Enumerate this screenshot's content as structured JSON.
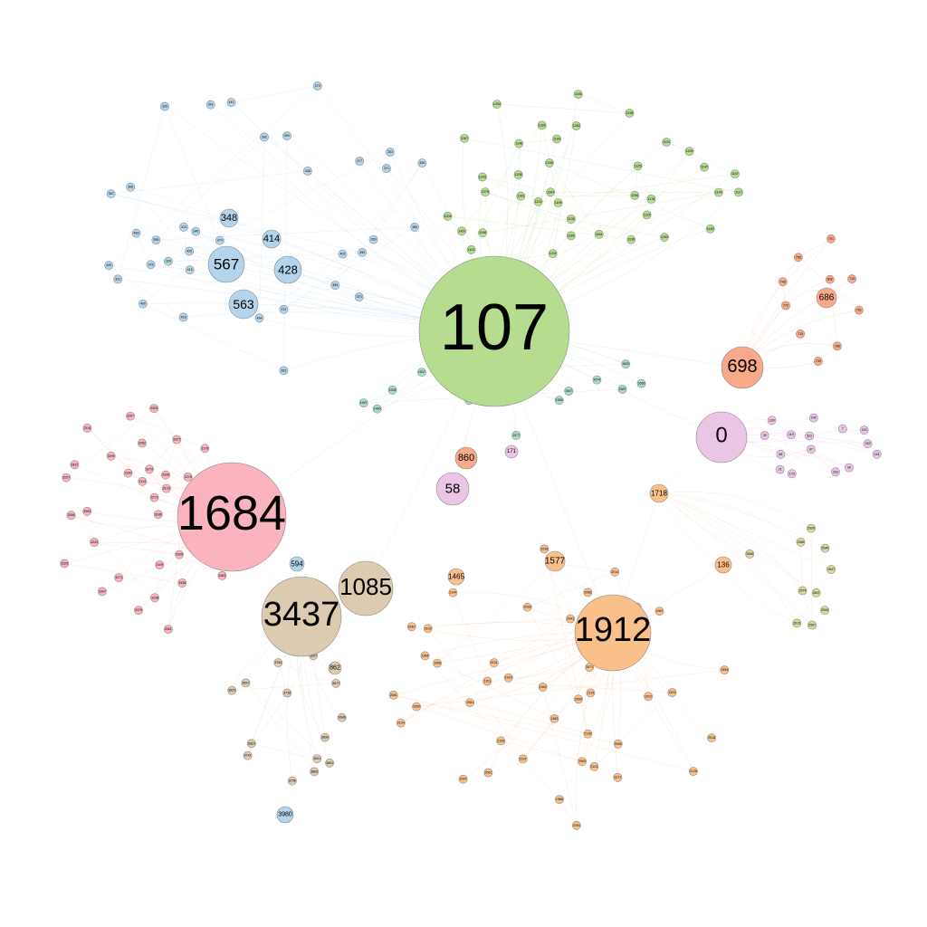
{
  "graph": {
    "palette": {
      "blue": "#b3d4ea",
      "green": "#b5dc8f",
      "teal": "#a9dcc8",
      "pink": "#fbb4bd",
      "orange": "#f9c08a",
      "tan": "#dccbb0",
      "olive": "#dcd8a0",
      "salmon": "#f7a98a",
      "violet": "#eac5e6"
    },
    "hubs": [
      {
        "id": "107",
        "community": "green"
      },
      {
        "id": "1684",
        "community": "pink"
      },
      {
        "id": "1912",
        "community": "orange"
      },
      {
        "id": "3437",
        "community": "tan"
      },
      {
        "id": "1085",
        "community": "tan"
      },
      {
        "id": "0",
        "community": "violet"
      },
      {
        "id": "698",
        "community": "salmon"
      },
      {
        "id": "567",
        "community": "blue"
      },
      {
        "id": "428",
        "community": "blue"
      },
      {
        "id": "563",
        "community": "blue"
      },
      {
        "id": "414",
        "community": "blue"
      },
      {
        "id": "348",
        "community": "blue"
      },
      {
        "id": "58",
        "community": "violet"
      },
      {
        "id": "860",
        "community": "salmon"
      },
      {
        "id": "1577",
        "community": "orange"
      },
      {
        "id": "1465",
        "community": "orange"
      },
      {
        "id": "1718",
        "community": "orange"
      },
      {
        "id": "136",
        "community": "orange"
      },
      {
        "id": "686",
        "community": "salmon"
      },
      {
        "id": "594",
        "community": "blue"
      },
      {
        "id": "862",
        "community": "tan"
      },
      {
        "id": "3980",
        "community": "blue"
      },
      {
        "id": "171",
        "community": "violet"
      }
    ],
    "communities": [
      {
        "color": "blue",
        "labels": [
          "483",
          "376",
          "415",
          "313",
          "346",
          "373",
          "396",
          "420",
          "500",
          "362",
          "400",
          "374",
          "326",
          "331",
          "389",
          "408",
          "369",
          "341",
          "418",
          "439",
          "370",
          "441",
          "438",
          "357",
          "350",
          "372",
          "360",
          "395",
          "382",
          "434",
          "402",
          "329",
          "353",
          "377",
          "371"
        ]
      },
      {
        "color": "green",
        "labels": [
          "1199",
          "1320",
          "1420",
          "1204",
          "1136",
          "1147",
          "1193",
          "1146",
          "1102",
          "1103",
          "1296",
          "1125",
          "1178",
          "1205",
          "1254",
          "1238",
          "1155",
          "1185",
          "1282",
          "1216",
          "1226",
          "1222",
          "1209",
          "1131",
          "1157",
          "1122",
          "1203",
          "1264",
          "1149",
          "1246",
          "1117",
          "1267",
          "1145",
          "1240",
          "1164",
          "1279",
          "1135",
          "1262"
        ]
      },
      {
        "color": "teal",
        "labels": [
          "917",
          "1730",
          "1527",
          "1666",
          "1547",
          "1467",
          "1587",
          "1508",
          "1460",
          "1599",
          "1520",
          "1537",
          "1652",
          "1656",
          "1577",
          "1559",
          "1539",
          "1531",
          "1455",
          "1544",
          "1674",
          "1507"
        ]
      },
      {
        "color": "pink",
        "labels": [
          "3437",
          "3109",
          "3171",
          "3186",
          "3221",
          "3257",
          "3320",
          "3374",
          "3242",
          "3396",
          "3383",
          "3141",
          "3266",
          "3238",
          "3189",
          "3307",
          "3262",
          "3391",
          "3375",
          "3336",
          "3327",
          "3279",
          "3203",
          "3325",
          "3338",
          "3361",
          "3278",
          "3129",
          "3299",
          "3283",
          "3114",
          "3116",
          "3273",
          "3179",
          "3297"
        ]
      },
      {
        "color": "orange",
        "labels": [
          "1935",
          "2131",
          "1919",
          "2010",
          "2077",
          "2036",
          "2136",
          "1951",
          "2147",
          "1983",
          "1964",
          "2109",
          "2063",
          "2000",
          "1994",
          "2018",
          "2061",
          "2101",
          "2113",
          "2151",
          "2144",
          "2055",
          "2081",
          "2126",
          "2086",
          "1987",
          "2022",
          "2067",
          "2041",
          "2134",
          "2103",
          "2094",
          "1942",
          "2071",
          "2097",
          "1968",
          "2115",
          "2050",
          "2033",
          "2014",
          "2122",
          "1956"
        ]
      },
      {
        "color": "tan",
        "labels": [
          "3830",
          "3607",
          "3631",
          "3756",
          "3646",
          "3623",
          "3677",
          "3764",
          "3718",
          "3741",
          "3810",
          "3651",
          "3697",
          "3869"
        ]
      },
      {
        "color": "olive",
        "labels": [
          "2555",
          "2607",
          "2546",
          "2566",
          "2615",
          "2647",
          "2586",
          "2574",
          "2597",
          "2630"
        ]
      },
      {
        "color": "salmon",
        "labels": [
          "713",
          "719",
          "772",
          "749",
          "791",
          "756",
          "761",
          "730",
          "786",
          "802"
        ]
      },
      {
        "color": "violet",
        "labels": [
          "7",
          "21",
          "25",
          "30",
          "67",
          "88",
          "119",
          "161",
          "170",
          "203",
          "242",
          "322",
          "332",
          "333",
          "339"
        ]
      }
    ]
  }
}
